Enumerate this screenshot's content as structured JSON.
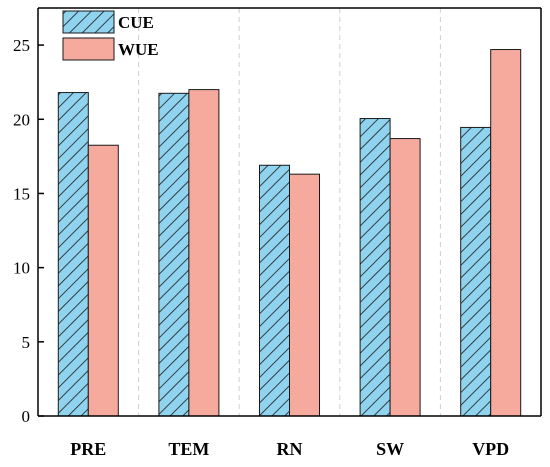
{
  "chart_data": {
    "type": "bar",
    "categories": [
      "PRE",
      "TEM",
      "RN",
      "SW",
      "VPD"
    ],
    "series": [
      {
        "name": "CUE",
        "values": [
          21.8,
          21.75,
          16.9,
          20.05,
          19.45
        ],
        "color": "#8FD3EE",
        "pattern": "diagonal-hatch"
      },
      {
        "name": "WUE",
        "values": [
          18.25,
          22.0,
          16.3,
          18.7,
          24.7
        ],
        "color": "#F6AA9E",
        "pattern": "solid"
      }
    ],
    "xlabel": "",
    "ylabel": "",
    "ylim": [
      0,
      27.5
    ],
    "yticks": [
      0,
      5,
      10,
      15,
      20,
      25
    ],
    "grid": "vertical dashed separators between categories",
    "legend_position": "top-left"
  }
}
